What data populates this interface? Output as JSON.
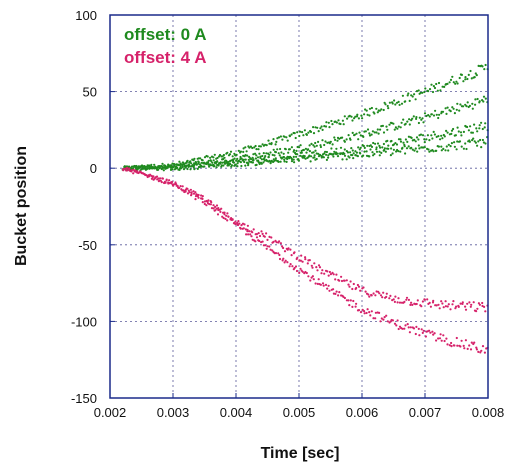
{
  "chart_data": {
    "type": "scatter",
    "title": "",
    "xlabel": "Time [sec]",
    "ylabel": "Bucket position",
    "xlim": [
      0.002,
      0.008
    ],
    "ylim": [
      -150,
      100
    ],
    "x_ticks": [
      "0.002",
      "0.003",
      "0.004",
      "0.005",
      "0.006",
      "0.007",
      "0.008"
    ],
    "y_ticks": [
      "100",
      "50",
      "0",
      "-50",
      "-100",
      "-150"
    ],
    "grid": true,
    "legend_position": "top-left",
    "series": [
      {
        "name": "offset: 0 A",
        "color": "#1f8a1f",
        "traces": [
          {
            "x": [
              0.0022,
              0.003,
              0.004,
              0.005,
              0.006,
              0.007,
              0.008
            ],
            "y": [
              0,
              2,
              10,
              22,
              35,
              50,
              66
            ]
          },
          {
            "x": [
              0.0022,
              0.003,
              0.004,
              0.005,
              0.006,
              0.007,
              0.008
            ],
            "y": [
              0,
              1,
              6,
              13,
              22,
              33,
              45
            ]
          },
          {
            "x": [
              0.0022,
              0.003,
              0.004,
              0.005,
              0.006,
              0.007,
              0.008
            ],
            "y": [
              0,
              1,
              4,
              8,
              13,
              20,
              28
            ]
          },
          {
            "x": [
              0.0022,
              0.003,
              0.004,
              0.005,
              0.006,
              0.007,
              0.008
            ],
            "y": [
              0,
              0,
              3,
              6,
              9,
              13,
              17
            ]
          }
        ]
      },
      {
        "name": "offset: 4 A",
        "color": "#d6226a",
        "traces": [
          {
            "x": [
              0.0022,
              0.003,
              0.0035,
              0.004,
              0.0045,
              0.005,
              0.0055,
              0.006,
              0.0065,
              0.007,
              0.0075,
              0.008
            ],
            "y": [
              0,
              -10,
              -20,
              -35,
              -45,
              -58,
              -70,
              -80,
              -85,
              -88,
              -90,
              -91
            ]
          },
          {
            "x": [
              0.0022,
              0.003,
              0.0035,
              0.004,
              0.0045,
              0.005,
              0.0055,
              0.006,
              0.0065,
              0.007,
              0.0075,
              0.008
            ],
            "y": [
              0,
              -10,
              -22,
              -37,
              -52,
              -66,
              -80,
              -92,
              -101,
              -108,
              -114,
              -119
            ]
          }
        ]
      }
    ]
  }
}
